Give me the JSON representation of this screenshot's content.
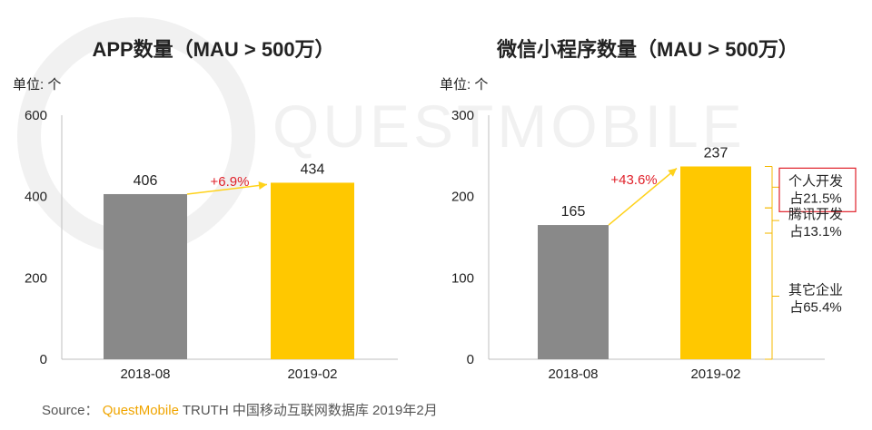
{
  "watermark": "QUESTMOBILE",
  "chart_data": [
    {
      "type": "bar",
      "title": "APP数量（MAU > 500万）",
      "unit_label": "单位: 个",
      "categories": [
        "2018-08",
        "2019-02"
      ],
      "values": [
        406,
        434
      ],
      "value_labels": [
        "406",
        "434"
      ],
      "bar_colors": [
        "#898989",
        "#ffc800"
      ],
      "ylim": [
        0,
        600
      ],
      "yticks": [
        0,
        200,
        400,
        600
      ],
      "ytick_labels": [
        "0",
        "200",
        "400",
        "600"
      ],
      "grid": false,
      "growth_label": "+6.9%",
      "growth_color": "#e0202a"
    },
    {
      "type": "bar",
      "title": "微信小程序数量（MAU > 500万）",
      "unit_label": "单位: 个",
      "categories": [
        "2018-08",
        "2019-02"
      ],
      "values": [
        165,
        237
      ],
      "value_labels": [
        "165",
        "237"
      ],
      "bar_colors": [
        "#898989",
        "#ffc800"
      ],
      "ylim": [
        0,
        300
      ],
      "yticks": [
        0,
        100,
        200,
        300
      ],
      "ytick_labels": [
        "0",
        "100",
        "200",
        "300"
      ],
      "grid": false,
      "growth_label": "+43.6%",
      "growth_color": "#e0202a",
      "breakdown": [
        {
          "label": "个人开发",
          "share_text": "占21.5%",
          "share": 21.5,
          "highlight": true
        },
        {
          "label": "腾讯开发",
          "share_text": "占13.1%",
          "share": 13.1,
          "highlight": false
        },
        {
          "label": "其它企业",
          "share_text": "占65.4%",
          "share": 65.4,
          "highlight": false
        }
      ]
    }
  ],
  "source": {
    "prefix": "Source：",
    "brand": "QuestMobile",
    "rest": "TRUTH 中国移动互联网数据库 2019年2月"
  },
  "colors": {
    "axis": "#bfbfbf",
    "bracket": "#f5b800",
    "arrow": "#ffd21a",
    "highlight_box": "#e0202a",
    "watermark": "#f1f1f1"
  }
}
